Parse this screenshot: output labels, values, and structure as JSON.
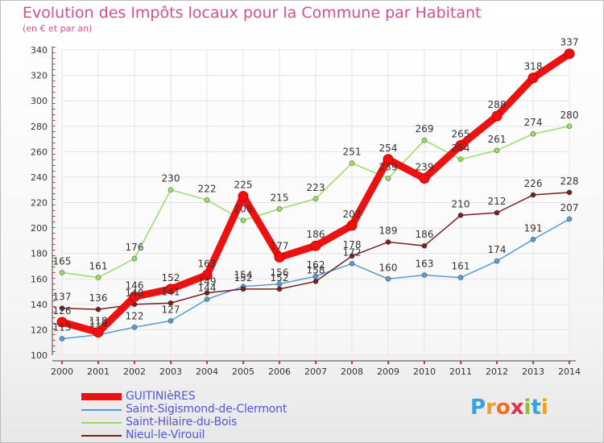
{
  "header": {
    "title": "Evolution des Impôts locaux pour la Commune par Habitant",
    "subtitle": "(en € et par an)"
  },
  "logo": {
    "text": "Proxiti",
    "letters": [
      {
        "ch": "P",
        "color": "#3aa0e0"
      },
      {
        "ch": "r",
        "color": "#f0a020"
      },
      {
        "ch": "o",
        "color": "#f07020"
      },
      {
        "ch": "x",
        "color": "#e03050"
      },
      {
        "ch": "i",
        "color": "#90c030"
      },
      {
        "ch": "t",
        "color": "#3aa0e0"
      },
      {
        "ch": "i",
        "color": "#f0a020"
      }
    ]
  },
  "chart_data": {
    "type": "line",
    "title": "Evolution des Impôts locaux pour la Commune par Habitant",
    "subtitle": "(en € et par an)",
    "xlabel": "",
    "ylabel": "",
    "x": [
      "2000",
      "2001",
      "2002",
      "2003",
      "2004",
      "2005",
      "2006",
      "2007",
      "2008",
      "2009",
      "2010",
      "2011",
      "2012",
      "2013",
      "2014"
    ],
    "ylim": [
      100,
      340
    ],
    "yticks": [
      100,
      120,
      140,
      160,
      180,
      200,
      220,
      240,
      260,
      280,
      300,
      320,
      340
    ],
    "grid": true,
    "legend_position": "bottom-left",
    "series": [
      {
        "name": "GUITINIèRES",
        "color": "#ee1111",
        "emphasis": true,
        "values": [
          126,
          118,
          146,
          152,
          163,
          225,
          177,
          186,
          202,
          254,
          239,
          265,
          288,
          318,
          337
        ]
      },
      {
        "name": "Saint-Sigismond-de-Clermont",
        "color": "#5b9bd5",
        "emphasis": false,
        "values": [
          113,
          116,
          122,
          127,
          144,
          154,
          156,
          162,
          172,
          160,
          163,
          161,
          174,
          191,
          207
        ]
      },
      {
        "name": "Saint-Hilaire-du-Bois",
        "color": "#99dd66",
        "emphasis": false,
        "values": [
          165,
          161,
          176,
          230,
          222,
          206,
          215,
          223,
          251,
          239,
          269,
          254,
          261,
          274,
          280
        ]
      },
      {
        "name": "Nieul-le-Virouil",
        "color": "#772222",
        "emphasis": false,
        "values": [
          137,
          136,
          140,
          141,
          149,
          152,
          152,
          158,
          178,
          189,
          186,
          210,
          212,
          226,
          228
        ]
      }
    ]
  }
}
